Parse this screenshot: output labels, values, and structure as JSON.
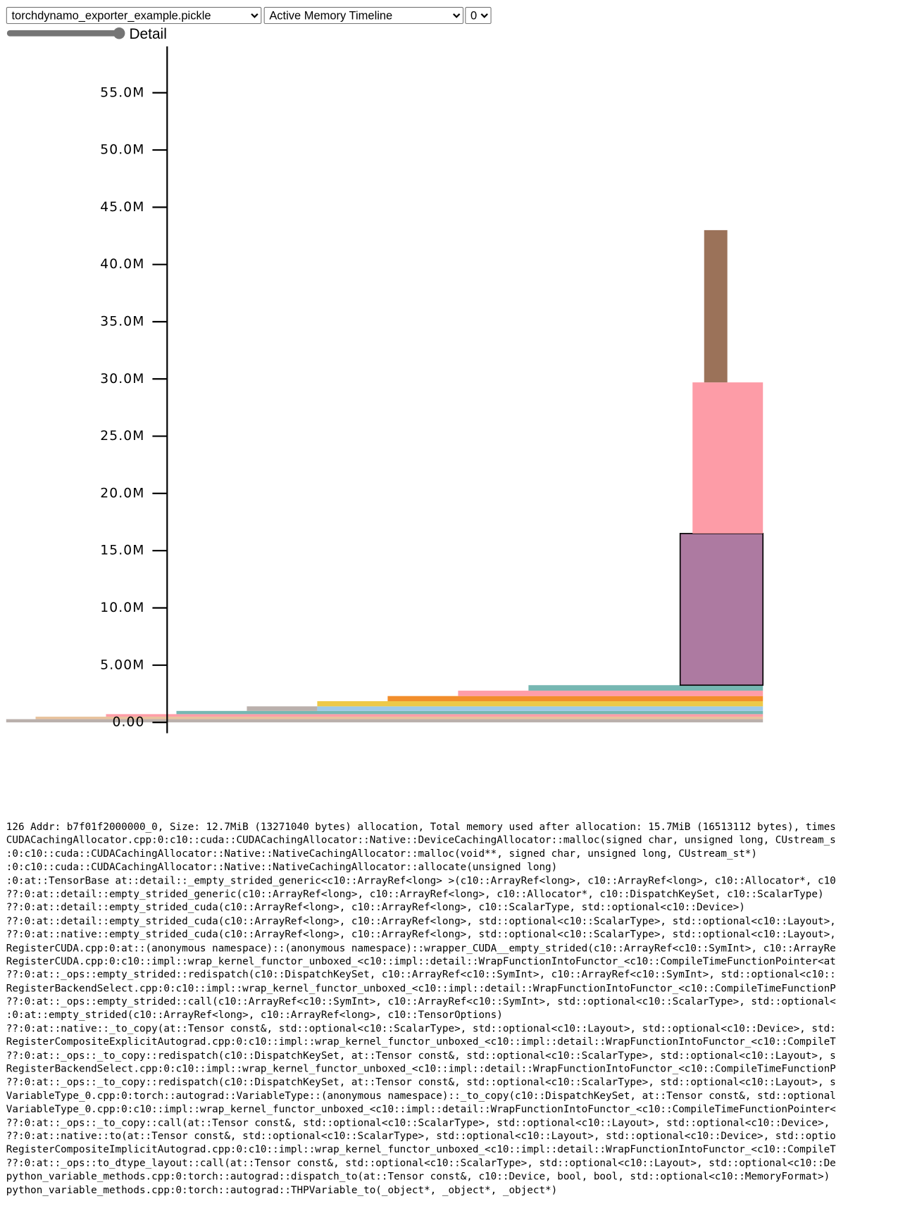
{
  "toolbar": {
    "file_options": [
      "torchdynamo_exporter_example.pickle"
    ],
    "view_options": [
      "Active Memory Timeline"
    ],
    "device_options": [
      "0"
    ],
    "slider_label": "Detail"
  },
  "chart_data": {
    "type": "timeline",
    "ylim": [
      0,
      59.05
    ],
    "yticks": [
      {
        "value": 0,
        "label": "0.00"
      },
      {
        "value": 5,
        "label": "5.00M"
      },
      {
        "value": 10,
        "label": "10.0M"
      },
      {
        "value": 15,
        "label": "15.0M"
      },
      {
        "value": 20,
        "label": "20.0M"
      },
      {
        "value": 25,
        "label": "25.0M"
      },
      {
        "value": 30,
        "label": "30.0M"
      },
      {
        "value": 35,
        "label": "35.0M"
      },
      {
        "value": 40,
        "label": "40.0M"
      },
      {
        "value": 45,
        "label": "45.0M"
      },
      {
        "value": 50,
        "label": "50.0M"
      },
      {
        "value": 55,
        "label": "55.0M"
      }
    ],
    "xlim": [
      0,
      978
    ],
    "allocations": [
      {
        "start": 0,
        "end": 978,
        "offset": 0,
        "size": 0.28,
        "color": "#bab0ac"
      },
      {
        "start": 38,
        "end": 978,
        "offset": 0.28,
        "size": 0.22,
        "color": "#e8c39e"
      },
      {
        "start": 129,
        "end": 978,
        "offset": 0.5,
        "size": 0.22,
        "color": "#ff9da7"
      },
      {
        "start": 220,
        "end": 978,
        "offset": 0.72,
        "size": 0.28,
        "color": "#76b7b2"
      },
      {
        "start": 311,
        "end": 402,
        "offset": 1.0,
        "size": 0.4,
        "color": "#bab0ac"
      },
      {
        "start": 402,
        "end": 978,
        "offset": 1.0,
        "size": 0.4,
        "color": "#9ecae9"
      },
      {
        "start": 402,
        "end": 978,
        "offset": 1.4,
        "size": 0.45,
        "color": "#edc948"
      },
      {
        "start": 493,
        "end": 978,
        "offset": 1.85,
        "size": 0.45,
        "color": "#f28e2b"
      },
      {
        "start": 584,
        "end": 978,
        "offset": 2.3,
        "size": 0.47,
        "color": "#ff9da7"
      },
      {
        "start": 675,
        "end": 978,
        "offset": 2.77,
        "size": 0.48,
        "color": "#76b7b2"
      },
      {
        "start": 871,
        "end": 978,
        "offset": 3.25,
        "size": 13.25,
        "color": "#ad7aa1",
        "outline": true
      },
      {
        "start": 887,
        "end": 978,
        "offset": 16.5,
        "size": 13.2,
        "color": "#fd9ca7"
      },
      {
        "start": 902,
        "end": 932,
        "offset": 29.7,
        "size": 13.3,
        "color": "#9b7259"
      }
    ]
  },
  "details": {
    "lines": [
      "126 Addr: b7f01f2000000_0, Size: 12.7MiB (13271040 bytes) allocation, Total memory used after allocation: 15.7MiB (16513112 bytes), times",
      "CUDACachingAllocator.cpp:0:c10::cuda::CUDACachingAllocator::Native::DeviceCachingAllocator::malloc(signed char, unsigned long, CUstream_s",
      ":0:c10::cuda::CUDACachingAllocator::Native::NativeCachingAllocator::malloc(void**, signed char, unsigned long, CUstream_st*)",
      ":0:c10::cuda::CUDACachingAllocator::Native::NativeCachingAllocator::allocate(unsigned long)",
      ":0:at::TensorBase at::detail::_empty_strided_generic<c10::ArrayRef<long> >(c10::ArrayRef<long>, c10::ArrayRef<long>, c10::Allocator*, c10",
      "??:0:at::detail::empty_strided_generic(c10::ArrayRef<long>, c10::ArrayRef<long>, c10::Allocator*, c10::DispatchKeySet, c10::ScalarType)",
      "??:0:at::detail::empty_strided_cuda(c10::ArrayRef<long>, c10::ArrayRef<long>, c10::ScalarType, std::optional<c10::Device>)",
      "??:0:at::detail::empty_strided_cuda(c10::ArrayRef<long>, c10::ArrayRef<long>, std::optional<c10::ScalarType>, std::optional<c10::Layout>,",
      "??:0:at::native::empty_strided_cuda(c10::ArrayRef<long>, c10::ArrayRef<long>, std::optional<c10::ScalarType>, std::optional<c10::Layout>,",
      "RegisterCUDA.cpp:0:at::(anonymous namespace)::(anonymous namespace)::wrapper_CUDA__empty_strided(c10::ArrayRef<c10::SymInt>, c10::ArrayRe",
      "RegisterCUDA.cpp:0:c10::impl::wrap_kernel_functor_unboxed_<c10::impl::detail::WrapFunctionIntoFunctor_<c10::CompileTimeFunctionPointer<at",
      "??:0:at::_ops::empty_strided::redispatch(c10::DispatchKeySet, c10::ArrayRef<c10::SymInt>, c10::ArrayRef<c10::SymInt>, std::optional<c10::",
      "RegisterBackendSelect.cpp:0:c10::impl::wrap_kernel_functor_unboxed_<c10::impl::detail::WrapFunctionIntoFunctor_<c10::CompileTimeFunctionP",
      "??:0:at::_ops::empty_strided::call(c10::ArrayRef<c10::SymInt>, c10::ArrayRef<c10::SymInt>, std::optional<c10::ScalarType>, std::optional<",
      ":0:at::empty_strided(c10::ArrayRef<long>, c10::ArrayRef<long>, c10::TensorOptions)",
      "??:0:at::native::_to_copy(at::Tensor const&, std::optional<c10::ScalarType>, std::optional<c10::Layout>, std::optional<c10::Device>, std:",
      "RegisterCompositeExplicitAutograd.cpp:0:c10::impl::wrap_kernel_functor_unboxed_<c10::impl::detail::WrapFunctionIntoFunctor_<c10::CompileT",
      "??:0:at::_ops::_to_copy::redispatch(c10::DispatchKeySet, at::Tensor const&, std::optional<c10::ScalarType>, std::optional<c10::Layout>, s",
      "RegisterBackendSelect.cpp:0:c10::impl::wrap_kernel_functor_unboxed_<c10::impl::detail::WrapFunctionIntoFunctor_<c10::CompileTimeFunctionP",
      "??:0:at::_ops::_to_copy::redispatch(c10::DispatchKeySet, at::Tensor const&, std::optional<c10::ScalarType>, std::optional<c10::Layout>, s",
      "VariableType_0.cpp:0:torch::autograd::VariableType::(anonymous namespace)::_to_copy(c10::DispatchKeySet, at::Tensor const&, std::optional",
      "VariableType_0.cpp:0:c10::impl::wrap_kernel_functor_unboxed_<c10::impl::detail::WrapFunctionIntoFunctor_<c10::CompileTimeFunctionPointer<",
      "??:0:at::_ops::_to_copy::call(at::Tensor const&, std::optional<c10::ScalarType>, std::optional<c10::Layout>, std::optional<c10::Device>,",
      "??:0:at::native::to(at::Tensor const&, std::optional<c10::ScalarType>, std::optional<c10::Layout>, std::optional<c10::Device>, std::optio",
      "RegisterCompositeImplicitAutograd.cpp:0:c10::impl::wrap_kernel_functor_unboxed_<c10::impl::detail::WrapFunctionIntoFunctor_<c10::CompileT",
      "??:0:at::_ops::to_dtype_layout::call(at::Tensor const&, std::optional<c10::ScalarType>, std::optional<c10::Layout>, std::optional<c10::De",
      "python_variable_methods.cpp:0:torch::autograd::dispatch_to(at::Tensor const&, c10::Device, bool, bool, std::optional<c10::MemoryFormat>)",
      "python_variable_methods.cpp:0:torch::autograd::THPVariable_to(_object*, _object*, _object*)"
    ]
  }
}
